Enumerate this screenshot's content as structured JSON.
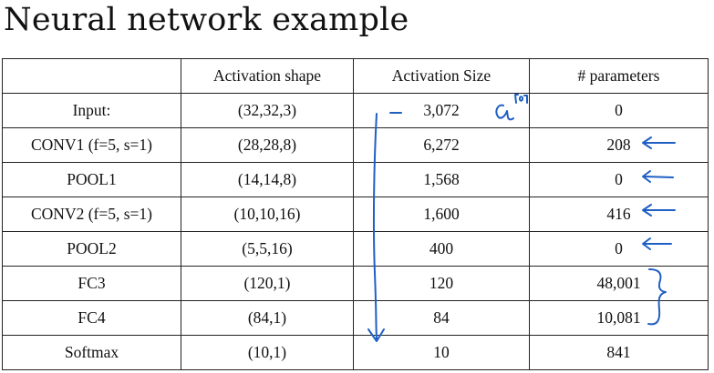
{
  "title": "Neural network example",
  "table": {
    "headers": [
      "",
      "Activation shape",
      "Activation Size",
      "# parameters"
    ],
    "rows": [
      {
        "layer": "Input:",
        "shape": "(32,32,3)",
        "size": "3,072",
        "params": "0"
      },
      {
        "layer": "CONV1 (f=5, s=1)",
        "shape": "(28,28,8)",
        "size": "6,272",
        "params": "208"
      },
      {
        "layer": "POOL1",
        "shape": "(14,14,8)",
        "size": "1,568",
        "params": "0"
      },
      {
        "layer": "CONV2  (f=5, s=1)",
        "shape": "(10,10,16)",
        "size": "1,600",
        "params": "416"
      },
      {
        "layer": "POOL2",
        "shape": "(5,5,16)",
        "size": "400",
        "params": "0"
      },
      {
        "layer": "FC3",
        "shape": "(120,1)",
        "size": "120",
        "params": "48,001"
      },
      {
        "layer": "FC4",
        "shape": "(84,1)",
        "size": "84",
        "params": "10,081"
      },
      {
        "layer": "Softmax",
        "shape": "(10,1)",
        "size": "10",
        "params": "841"
      }
    ]
  },
  "annotations": {
    "ink_color": "#1f5fc4",
    "input_note": "a[0]"
  }
}
